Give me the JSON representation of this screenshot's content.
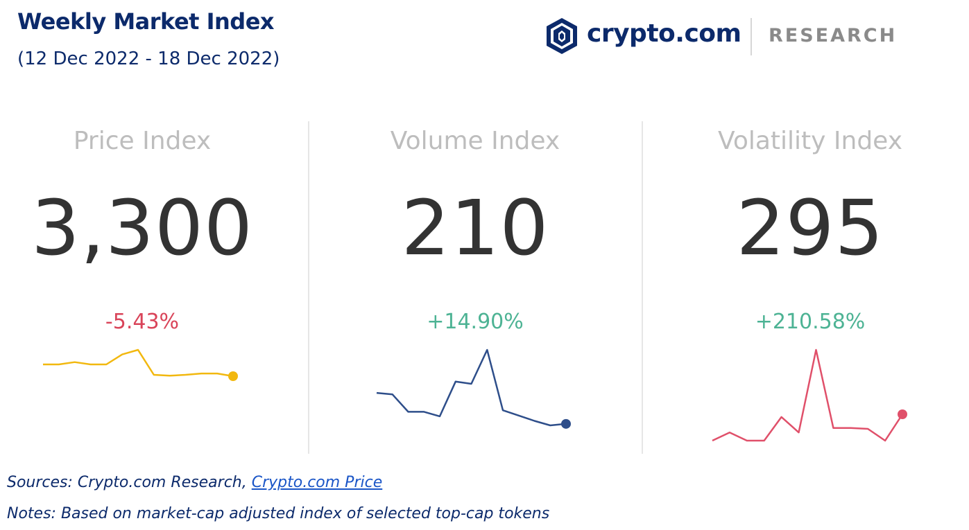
{
  "header": {
    "title": "Weekly Market Index",
    "subtitle": "(12 Dec 2022 - 18 Dec 2022)"
  },
  "logo": {
    "icon": "crypto-lion-shield-icon",
    "wordmark": "crypto.com",
    "research": "RESEARCH",
    "color": "#0c2a6b"
  },
  "footer": {
    "sources_prefix": "Sources: Crypto.com Research, ",
    "sources_link": "Crypto.com Price",
    "notes": "Notes: Based on market-cap adjusted index of selected top-cap tokens"
  },
  "chart_data": [
    {
      "type": "line",
      "title": "Price Index",
      "value": "3,300",
      "change": "-5.43%",
      "color": "#f2b80f",
      "change_color": "#d94459",
      "values": [
        58,
        58,
        63,
        58,
        58,
        80,
        90,
        35,
        33,
        35,
        38,
        38,
        32
      ]
    },
    {
      "type": "line",
      "title": "Volume Index",
      "value": "210",
      "change": "+14.90%",
      "color": "#2e4e8a",
      "change_color": "#4db394",
      "values": [
        43,
        41,
        18,
        18,
        12,
        58,
        55,
        100,
        20,
        13,
        6,
        0,
        2
      ]
    },
    {
      "type": "line",
      "title": "Volatility Index",
      "value": "295",
      "change": "+210.58%",
      "color": "#e0506a",
      "change_color": "#4db394",
      "values": [
        0,
        9,
        0,
        0,
        26,
        9,
        100,
        14,
        14,
        13,
        0,
        29
      ]
    }
  ]
}
